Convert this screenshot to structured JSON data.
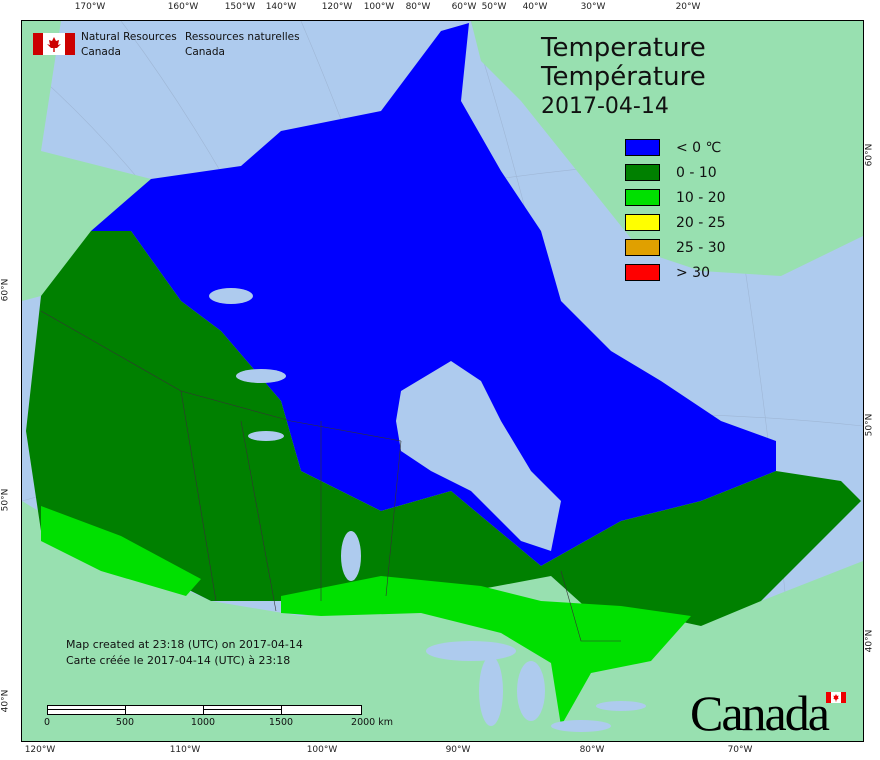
{
  "header": {
    "org_en_line1": "Natural Resources",
    "org_en_line2": "Canada",
    "org_fr_line1": "Ressources naturelles",
    "org_fr_line2": "Canada"
  },
  "title": {
    "line1": "Temperature",
    "line2": "Température",
    "date": "2017-04-14"
  },
  "legend": [
    {
      "label": "< 0 ℃",
      "color": "#0000ff"
    },
    {
      "label": "0 - 10",
      "color": "#008000"
    },
    {
      "label": "10 - 20",
      "color": "#00e000"
    },
    {
      "label": "20 - 25",
      "color": "#ffff00"
    },
    {
      "label": "25 - 30",
      "color": "#e0a000"
    },
    {
      "label": "> 30",
      "color": "#ff0000"
    }
  ],
  "credits": {
    "line1": "Map created at 23:18 (UTC) on 2017-04-14",
    "line2": "Carte créée le 2017-04-14 (UTC) à 23:18"
  },
  "scale": {
    "labels": [
      "0",
      "500",
      "1000",
      "1500",
      "2000  km"
    ]
  },
  "axes": {
    "top": [
      "170°W",
      "160°W",
      "150°W",
      "140°W",
      "120°W",
      "100°W",
      "80°W",
      "60°W",
      "50°W",
      "40°W",
      "30°W",
      "20°W"
    ],
    "bottom": [
      "120°W",
      "110°W",
      "100°W",
      "90°W",
      "80°W",
      "70°W"
    ],
    "left": [
      "60°N",
      "50°N",
      "40°N"
    ],
    "right": [
      "60°N",
      "50°N",
      "40°N"
    ]
  },
  "wordmark": "Canada",
  "colors": {
    "ocean": "#aecbee",
    "foreign_land": "#98e0b0",
    "lakes": "#aecbee"
  }
}
